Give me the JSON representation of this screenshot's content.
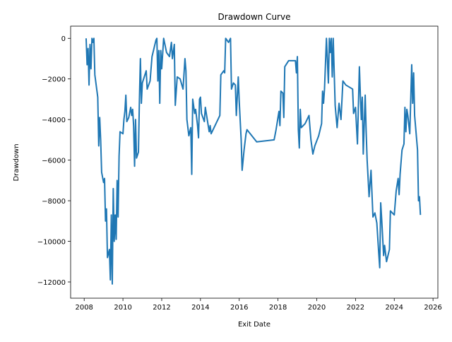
{
  "chart_data": {
    "type": "line",
    "title": "Drawdown Curve",
    "x_label": "Exit Date",
    "y_label": "Drawdown",
    "x": [
      2008.1,
      2008.15,
      2008.2,
      2008.25,
      2008.3,
      2008.35,
      2008.4,
      2008.45,
      2008.5,
      2008.55,
      2008.7,
      2008.75,
      2008.8,
      2008.85,
      2008.9,
      2009.0,
      2009.05,
      2009.1,
      2009.15,
      2009.2,
      2009.3,
      2009.35,
      2009.4,
      2009.45,
      2009.5,
      2009.55,
      2009.6,
      2009.65,
      2009.7,
      2009.75,
      2009.8,
      2009.85,
      2010.0,
      2010.05,
      2010.1,
      2010.15,
      2010.2,
      2010.3,
      2010.4,
      2010.45,
      2010.5,
      2010.55,
      2010.6,
      2010.65,
      2010.7,
      2010.8,
      2010.85,
      2010.9,
      2010.95,
      2011.0,
      2011.2,
      2011.25,
      2011.4,
      2011.5,
      2011.7,
      2011.75,
      2011.8,
      2011.85,
      2011.9,
      2011.95,
      2012.0,
      2012.1,
      2012.25,
      2012.4,
      2012.5,
      2012.55,
      2012.65,
      2012.7,
      2012.8,
      2012.95,
      2013.1,
      2013.2,
      2013.25,
      2013.3,
      2013.4,
      2013.5,
      2013.55,
      2013.6,
      2013.7,
      2013.75,
      2013.85,
      2013.9,
      2013.95,
      2014.0,
      2014.05,
      2014.2,
      2014.25,
      2014.35,
      2014.45,
      2014.5,
      2014.55,
      2015.0,
      2015.05,
      2015.2,
      2015.25,
      2015.3,
      2015.45,
      2015.55,
      2015.6,
      2015.7,
      2015.8,
      2015.85,
      2015.95,
      2016.0,
      2016.1,
      2016.15,
      2016.25,
      2016.35,
      2016.4,
      2016.9,
      2017.8,
      2017.9,
      2018.05,
      2018.1,
      2018.15,
      2018.25,
      2018.3,
      2018.35,
      2018.55,
      2018.9,
      2018.95,
      2019.0,
      2019.05,
      2019.1,
      2019.15,
      2019.2,
      2019.4,
      2019.6,
      2019.7,
      2019.8,
      2019.9,
      2020.1,
      2020.25,
      2020.3,
      2020.35,
      2020.4,
      2020.5,
      2020.6,
      2020.65,
      2020.7,
      2020.75,
      2020.8,
      2020.85,
      2020.95,
      2021.05,
      2021.15,
      2021.25,
      2021.35,
      2021.5,
      2021.85,
      2021.9,
      2022.0,
      2022.1,
      2022.2,
      2022.25,
      2022.3,
      2022.35,
      2022.4,
      2022.5,
      2022.55,
      2022.6,
      2022.7,
      2022.8,
      2022.9,
      2023.0,
      2023.1,
      2023.2,
      2023.25,
      2023.3,
      2023.35,
      2023.45,
      2023.5,
      2023.6,
      2023.75,
      2023.8,
      2023.9,
      2024.0,
      2024.1,
      2024.2,
      2024.25,
      2024.3,
      2024.4,
      2024.5,
      2024.55,
      2024.6,
      2024.65,
      2024.7,
      2024.8,
      2024.9,
      2024.95,
      2025.0,
      2025.05,
      2025.2,
      2025.25,
      2025.3,
      2025.35
    ],
    "values": [
      0,
      -1300,
      -500,
      -2300,
      -300,
      -1500,
      0,
      -200,
      0,
      -1800,
      -2900,
      -5300,
      -3900,
      -5000,
      -6600,
      -7100,
      -6900,
      -9000,
      -8400,
      -10800,
      -10400,
      -11900,
      -8700,
      -12100,
      -7400,
      -10000,
      -8700,
      -9900,
      -7000,
      -8800,
      -5800,
      -4600,
      -4700,
      -4000,
      -3600,
      -2800,
      -4100,
      -3900,
      -3400,
      -3800,
      -3500,
      -4300,
      -6300,
      -4000,
      -5900,
      -5600,
      -3000,
      -1000,
      -3200,
      -2200,
      -1600,
      -2500,
      -2100,
      -900,
      -100,
      0,
      -2100,
      -600,
      -3200,
      -600,
      -1500,
      0,
      -700,
      -900,
      -200,
      -1000,
      -300,
      -3300,
      -1900,
      -2000,
      -2500,
      -1000,
      -1600,
      -4000,
      -4800,
      -4400,
      -6700,
      -3000,
      -3700,
      -3500,
      -4300,
      -4900,
      -3000,
      -2900,
      -3700,
      -4100,
      -3400,
      -4000,
      -4600,
      -4300,
      -4700,
      -3800,
      -1800,
      -1600,
      -1700,
      0,
      -200,
      0,
      -2500,
      -2200,
      -2300,
      -3800,
      -1900,
      -3100,
      -5000,
      -6500,
      -5500,
      -4700,
      -4500,
      -5100,
      -5000,
      -4500,
      -3600,
      -4300,
      -2600,
      -2700,
      -3900,
      -1400,
      -1100,
      -1100,
      -1700,
      -900,
      -4500,
      -5400,
      -3500,
      -4400,
      -4200,
      -3800,
      -5000,
      -5700,
      -5300,
      -4800,
      -4200,
      -2600,
      -3200,
      -2500,
      0,
      -2200,
      0,
      -700,
      0,
      -1900,
      0,
      -3300,
      -4400,
      -3200,
      -4000,
      -2100,
      -2300,
      -2500,
      -3700,
      -3400,
      -5200,
      -1400,
      -2800,
      -4000,
      -2900,
      -5700,
      -2800,
      -4600,
      -6000,
      -7800,
      -6500,
      -8800,
      -8600,
      -9100,
      -10600,
      -11300,
      -8100,
      -8900,
      -10700,
      -10200,
      -11000,
      -10400,
      -8500,
      -8600,
      -8700,
      -7500,
      -6900,
      -7700,
      -6700,
      -5500,
      -5200,
      -3400,
      -4600,
      -3500,
      -3800,
      -4700,
      -1300,
      -3200,
      -1700,
      -3800,
      -5500,
      -8000,
      -7800,
      -8700
    ],
    "color": "#1f77b4",
    "xlim": [
      2007.3,
      2026.25
    ],
    "xticks": [
      2008,
      2010,
      2012,
      2014,
      2016,
      2018,
      2020,
      2022,
      2024,
      2026
    ],
    "ylim": [
      -12800,
      600
    ],
    "yticks": [
      {
        "value": -12000,
        "label": "−12000"
      },
      {
        "value": -10000,
        "label": "−10000"
      },
      {
        "value": -8000,
        "label": "−8000"
      },
      {
        "value": -6000,
        "label": "−6000"
      },
      {
        "value": -4000,
        "label": "−4000"
      },
      {
        "value": -2000,
        "label": "−2000"
      },
      0
    ]
  }
}
